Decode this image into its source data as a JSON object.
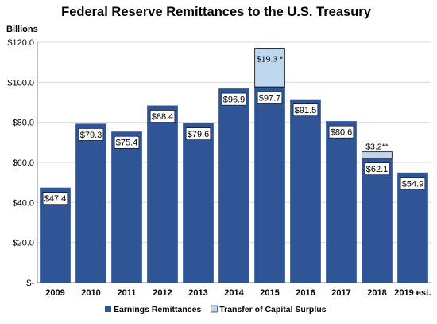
{
  "chart_data": {
    "type": "bar",
    "stacked": true,
    "title": "Federal Reserve Remittances to the U.S. Treasury",
    "ylabel": "Billions",
    "xlabel": "",
    "ylim": [
      0,
      120
    ],
    "yticks": [
      0,
      20,
      40,
      60,
      80,
      100,
      120
    ],
    "ytick_labels": [
      "$-",
      "$20.0",
      "$40.0",
      "$60.0",
      "$80.0",
      "$100.0",
      "$120.0"
    ],
    "grid": true,
    "categories": [
      "2009",
      "2010",
      "2011",
      "2012",
      "2013",
      "2014",
      "2015",
      "2016",
      "2017",
      "2018",
      "2019 est."
    ],
    "series": [
      {
        "name": "Earnings Remittances",
        "color": "#2f5597",
        "values": [
          47.4,
          79.3,
          75.4,
          88.4,
          79.6,
          96.9,
          97.7,
          91.5,
          80.6,
          62.1,
          54.9
        ],
        "labels": [
          "$47.4",
          "$79.3",
          "$75.4",
          "$88.4",
          "$79.6",
          "$96.9",
          "$97.7",
          "$91.5",
          "$80.6",
          "$62.1",
          "$54.9"
        ]
      },
      {
        "name": "Transfer of Capital Surplus",
        "color": "#bdd7ee",
        "values": [
          0,
          0,
          0,
          0,
          0,
          0,
          19.3,
          0,
          0,
          3.2,
          0
        ],
        "labels": [
          "",
          "",
          "",
          "",
          "",
          "",
          "$19.3 *",
          "",
          "",
          "$3.2**",
          ""
        ]
      }
    ],
    "legend_position": "bottom"
  }
}
